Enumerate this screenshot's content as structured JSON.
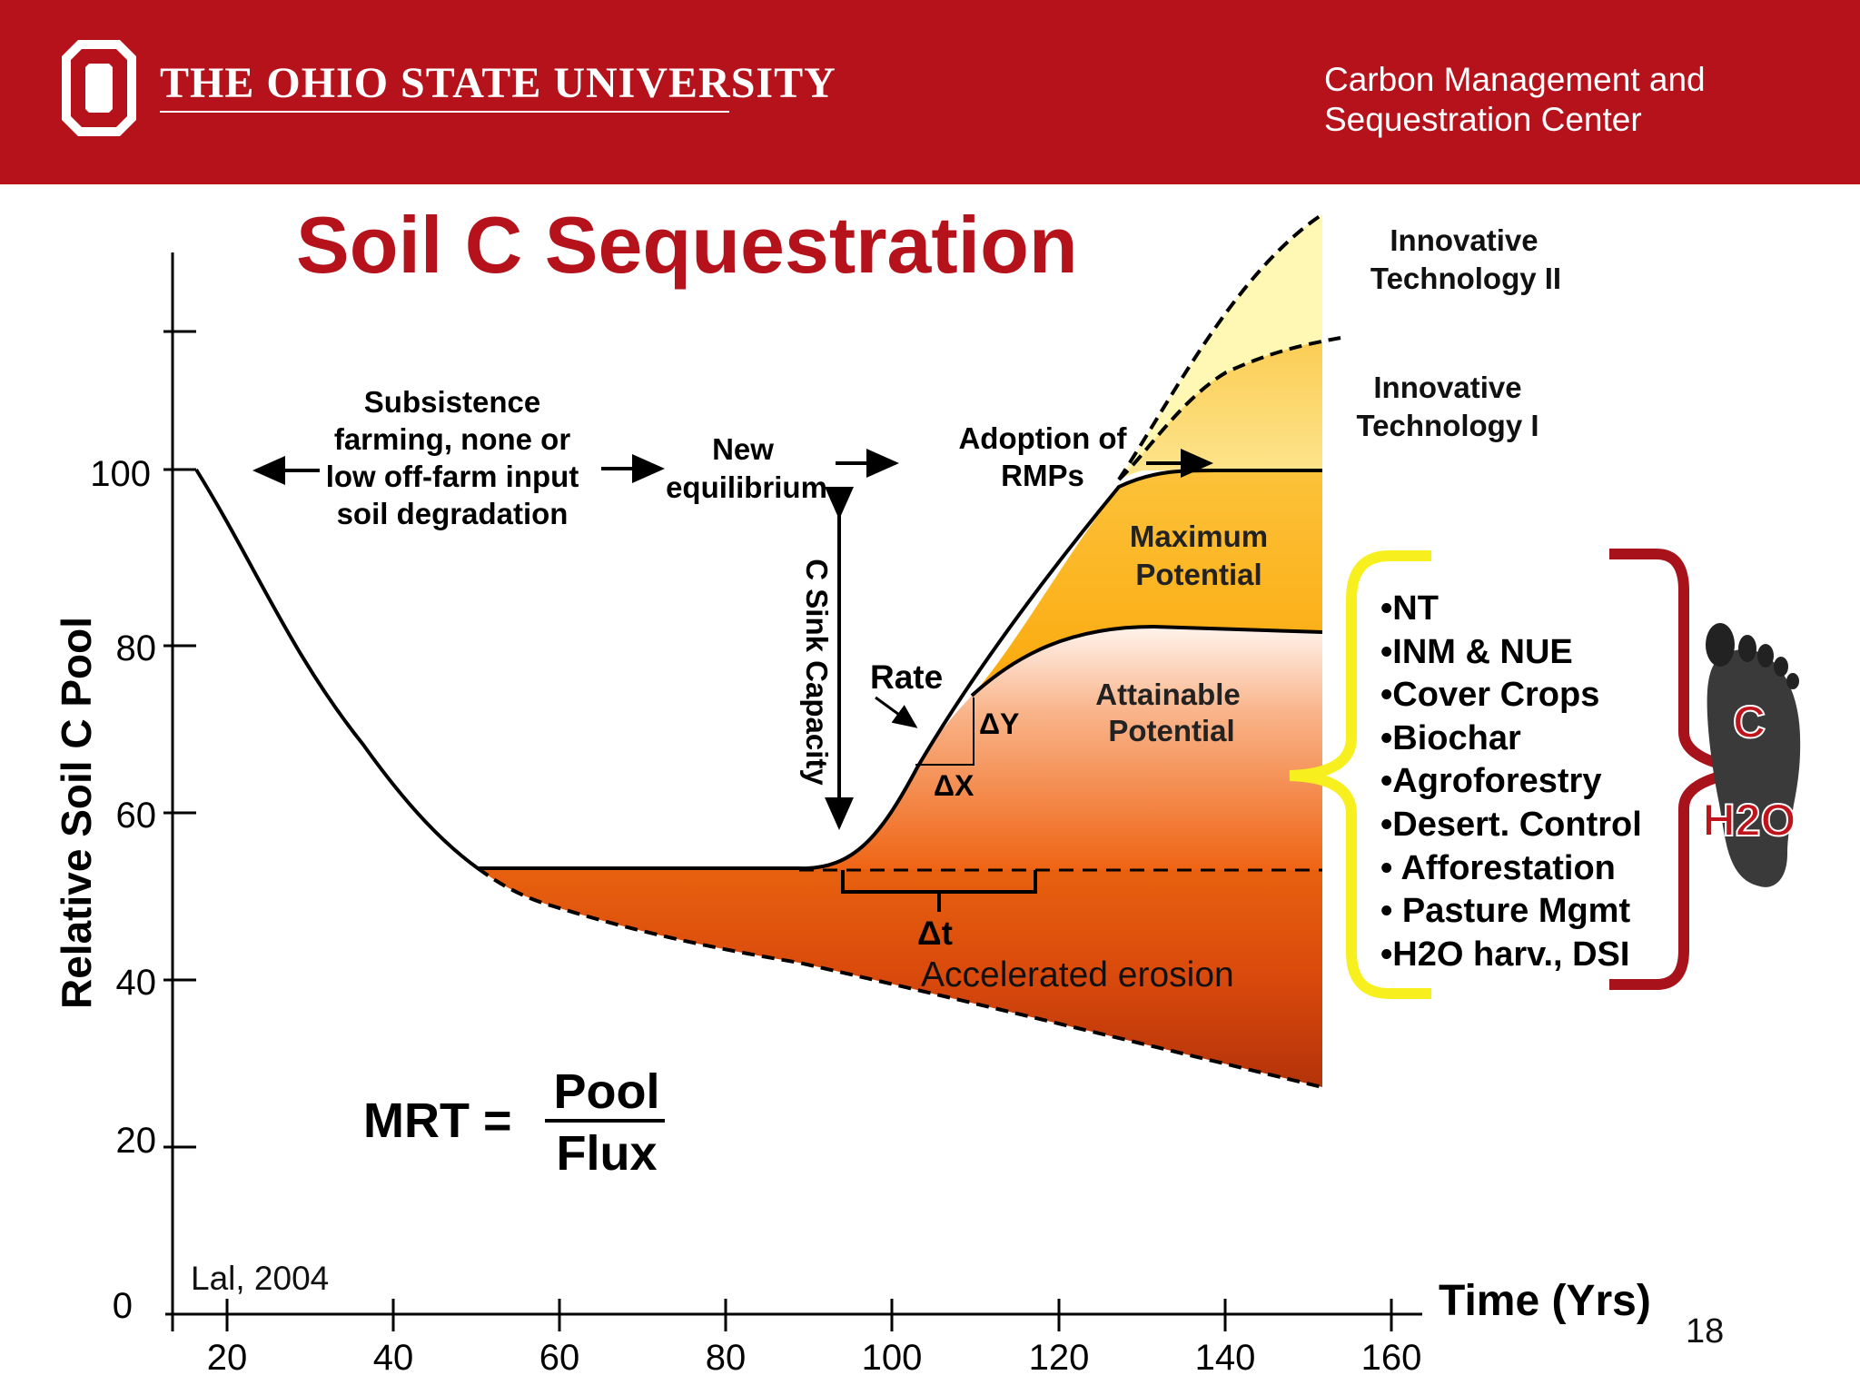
{
  "header": {
    "brand": "THE OHIO STATE UNIVERSITY",
    "center_line1": "Carbon Management and",
    "center_line2": "Sequestration Center",
    "logo_letter": "O",
    "color": "#b5121b"
  },
  "title": "Soil C Sequestration",
  "y_axis": {
    "label": "Relative Soil C Pool",
    "ticks": [
      "100",
      "80",
      "60",
      "40",
      "20",
      "0"
    ]
  },
  "x_axis": {
    "label": "Time (Yrs)",
    "ticks": [
      "20",
      "40",
      "60",
      "80",
      "100",
      "120",
      "140",
      "160"
    ]
  },
  "annotations": {
    "subsistence": [
      "Subsistence",
      "farming, none or",
      "low off-farm input",
      "soil degradation"
    ],
    "new_eq": [
      "New",
      "equilibrium"
    ],
    "adoption": [
      "Adoption of",
      "RMPs"
    ],
    "sink": "C Sink Capacity",
    "rate": "Rate",
    "dy": "ΔY",
    "dx": "ΔX",
    "dt": "Δt",
    "erosion": "Accelerated erosion",
    "max_potential": [
      "Maximum",
      "Potential"
    ],
    "attainable": [
      "Attainable",
      "Potential"
    ],
    "innov2": [
      "Innovative",
      "Technology II"
    ],
    "innov1": [
      "Innovative",
      "Technology I"
    ],
    "citation": "Lal, 2004",
    "slide_number": "18"
  },
  "formula": {
    "lhs": "MRT =",
    "numerator": "Pool",
    "denominator": "Flux"
  },
  "practices": [
    "•NT",
    "•INM & NUE",
    "•Cover Crops",
    "•Biochar",
    "•Agroforestry",
    "•Desert. Control",
    "• Afforestation",
    "• Pasture Mgmt",
    "•H2O harv., DSI"
  ],
  "footprint": {
    "c_label": "C",
    "h2o_label": "H2O"
  },
  "colors": {
    "erosion_top": "#e35c12",
    "erosion_bottom": "#b8370b",
    "attainable_top": "#fde8dc",
    "attainable_bottom": "#f36b17",
    "maximum": "#fdb00f",
    "innov1": "#fdd35a",
    "innov2": "#fff8b0",
    "brace_yellow": "#f7ef1e",
    "brace_red": "#b5121b"
  }
}
